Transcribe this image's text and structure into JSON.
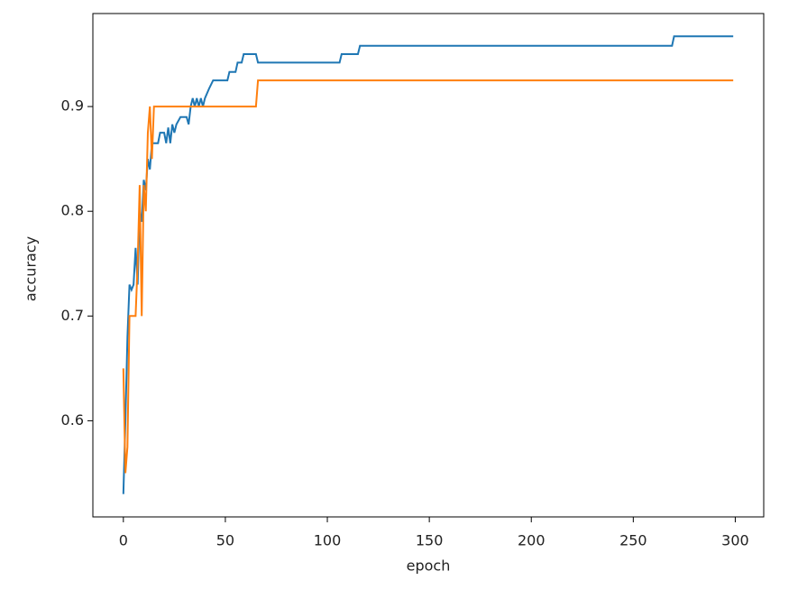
{
  "chart_data": {
    "type": "line",
    "xlabel": "epoch",
    "ylabel": "accuracy",
    "xlim": [
      -14.95,
      313.95
    ],
    "xticks": [
      0,
      50,
      100,
      150,
      200,
      250,
      300
    ],
    "ylim": [
      0.5082,
      0.9888
    ],
    "yticks": [
      0.6,
      0.7,
      0.8,
      0.9
    ],
    "grid": false,
    "series": [
      {
        "color": "#1f77b4",
        "x": [
          0,
          1,
          2,
          3,
          4,
          5,
          6,
          7,
          8,
          9,
          10,
          11,
          12,
          13,
          14,
          15,
          17,
          18,
          20,
          21,
          22,
          23,
          24,
          25,
          26,
          28,
          31,
          32,
          33,
          34,
          35,
          36,
          37,
          38,
          39,
          40,
          42,
          44,
          51,
          52,
          55,
          56,
          58,
          59,
          65,
          66,
          106,
          107,
          115,
          116,
          269,
          270,
          299
        ],
        "values": [
          0.53,
          0.6,
          0.68,
          0.73,
          0.725,
          0.73,
          0.765,
          0.73,
          0.8,
          0.79,
          0.83,
          0.82,
          0.85,
          0.84,
          0.865,
          0.865,
          0.865,
          0.875,
          0.875,
          0.865,
          0.88,
          0.865,
          0.883,
          0.875,
          0.883,
          0.89,
          0.89,
          0.883,
          0.9,
          0.908,
          0.9,
          0.908,
          0.9,
          0.908,
          0.9,
          0.908,
          0.917,
          0.925,
          0.925,
          0.933,
          0.933,
          0.942,
          0.942,
          0.95,
          0.95,
          0.942,
          0.942,
          0.95,
          0.95,
          0.958,
          0.958,
          0.967,
          0.967
        ]
      },
      {
        "color": "#ff7f0e",
        "x": [
          0,
          1,
          2,
          3,
          6,
          7,
          8,
          9,
          10,
          11,
          12,
          13,
          14,
          15,
          65,
          66,
          299
        ],
        "values": [
          0.65,
          0.55,
          0.575,
          0.7,
          0.7,
          0.75,
          0.825,
          0.7,
          0.825,
          0.8,
          0.875,
          0.9,
          0.85,
          0.9,
          0.9,
          0.925,
          0.925
        ]
      }
    ]
  }
}
